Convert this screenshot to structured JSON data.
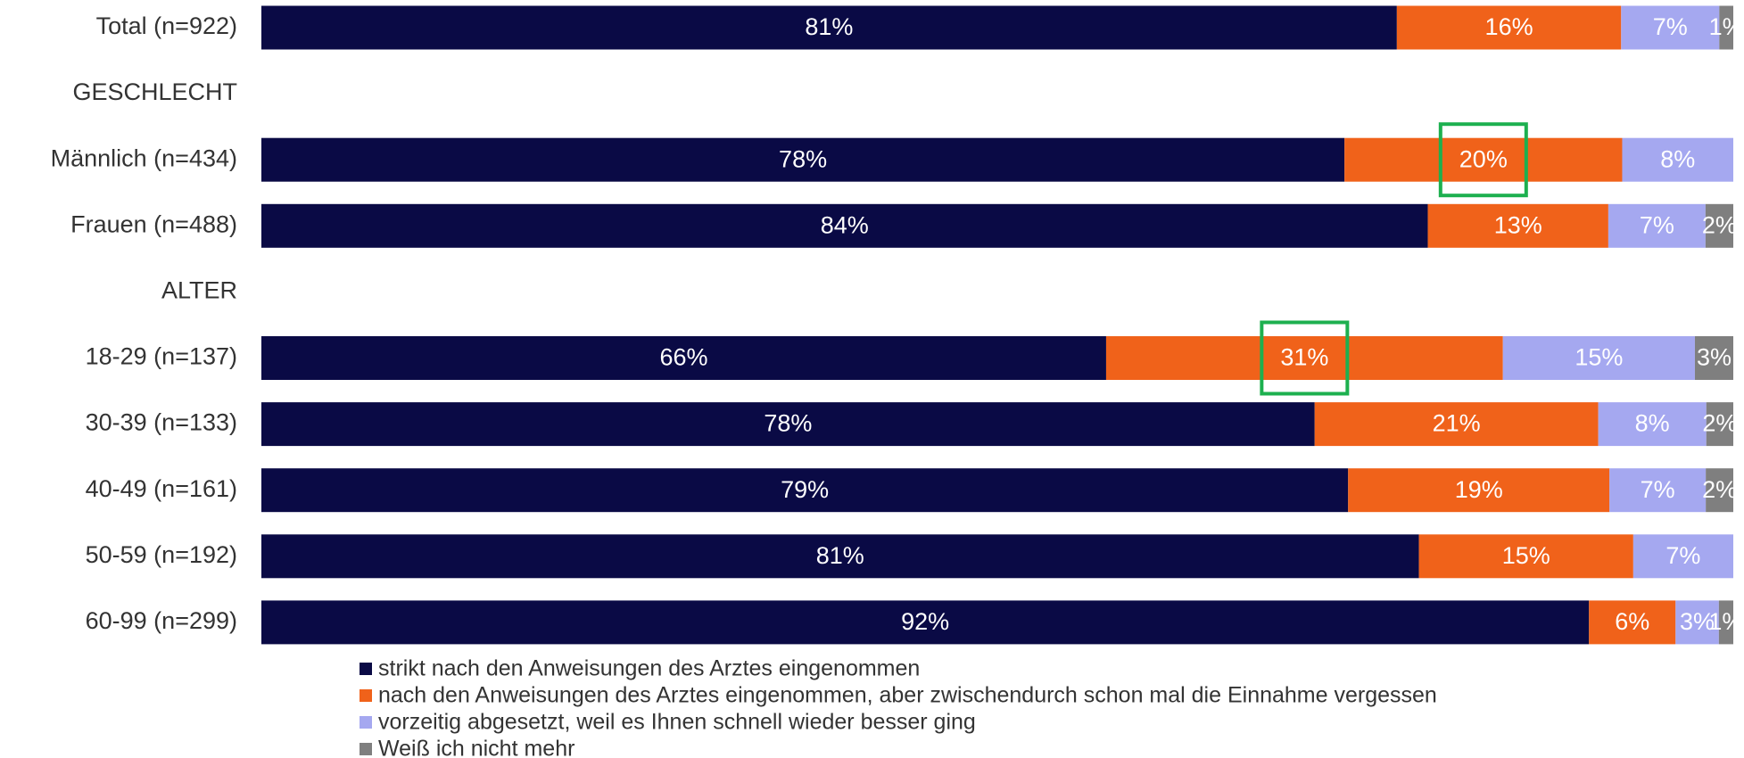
{
  "chart_data": {
    "type": "stacked_bar_100",
    "categories": [
      "Total (n=922)",
      "GESCHLECHT",
      "Männlich (n=434)",
      "Frauen (n=488)",
      "ALTER",
      "18-29 (n=137)",
      "30-39 (n=133)",
      "40-49 (n=161)",
      "50-59 (n=192)",
      "60-99 (n=299)"
    ],
    "series": [
      {
        "name": "strikt nach den Anweisungen des Arztes eingenommen",
        "color": "#0a0a45",
        "values": [
          81,
          null,
          78,
          84,
          null,
          66,
          78,
          79,
          81,
          92
        ],
        "value_labels": [
          "81%",
          null,
          "78%",
          "84%",
          null,
          "66%",
          "78%",
          "79%",
          "81%",
          "92%"
        ]
      },
      {
        "name": "nach den Anweisungen des Arztes eingenommen, aber zwischendurch schon mal die Einnahme vergessen",
        "color": "#f0621a",
        "values": [
          16,
          null,
          20,
          13,
          null,
          31,
          21,
          19,
          15,
          6
        ],
        "value_labels": [
          "16%",
          null,
          "20%",
          "13%",
          null,
          "31%",
          "21%",
          "19%",
          "15%",
          "6%"
        ]
      },
      {
        "name": "vorzeitig abgesetzt, weil es Ihnen schnell wieder besser ging",
        "color": "#a5a8f0",
        "values": [
          7,
          null,
          8,
          7,
          null,
          15,
          8,
          7,
          7,
          3
        ],
        "value_labels": [
          "7%",
          null,
          "8%",
          "7%",
          null,
          "15%",
          "8%",
          "7%",
          "7%",
          "3%"
        ]
      },
      {
        "name": "Weiß ich nicht mehr",
        "color": "#7f7f7f",
        "values": [
          1,
          null,
          null,
          2,
          null,
          3,
          2,
          2,
          null,
          1
        ],
        "value_labels": [
          "1%",
          null,
          null,
          "2%",
          null,
          "3%",
          "2%",
          "2%",
          null,
          "1%"
        ]
      }
    ]
  }
}
